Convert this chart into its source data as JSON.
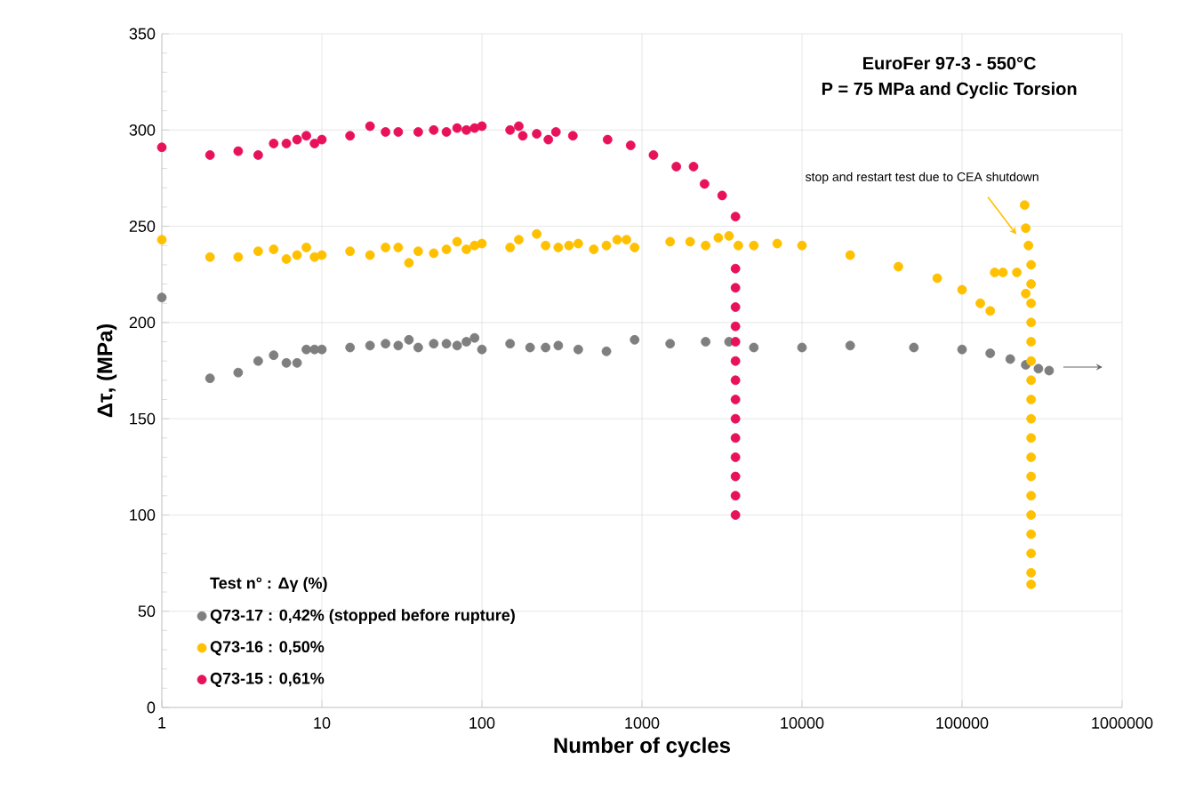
{
  "chart_data": {
    "type": "scatter",
    "title": "EuroFer 97-3 - 550°C",
    "subtitle": "P = 75 MPa and Cyclic Torsion",
    "xlabel": "Number of cycles",
    "ylabel": "Δτ, (MPa)",
    "legend_title": "Test n° : Δγ (%)",
    "log": "x",
    "grid": true,
    "legend": "bottom left",
    "marker": "circle",
    "xlim": [
      1,
      1000000
    ],
    "xticks": [
      1,
      10,
      100,
      1000,
      10000,
      100000,
      1000000
    ],
    "ylim": [
      0,
      350
    ],
    "yticks": [
      0,
      50,
      100,
      150,
      200,
      250,
      300,
      350
    ],
    "annotations": [
      {
        "text": "stop and restart test due to CEA shutdown",
        "x": 230000,
        "y": 243
      }
    ],
    "series": [
      {
        "name": "Q73-17 : 0,42% (stopped before rupture)",
        "color": "#7f7f7f",
        "x": [
          1,
          2,
          3,
          4,
          5,
          6,
          7,
          8,
          9,
          10,
          15,
          20,
          25,
          30,
          35,
          40,
          50,
          60,
          70,
          80,
          90,
          100,
          150,
          200,
          250,
          300,
          400,
          600,
          900,
          1500,
          2500,
          3500,
          5000,
          10000,
          20000,
          50000,
          100000,
          150000,
          200000,
          250000,
          300000,
          350000
        ],
        "values": [
          213,
          171,
          174,
          180,
          183,
          179,
          179,
          186,
          186,
          186,
          187,
          188,
          189,
          188,
          191,
          187,
          189,
          189,
          188,
          190,
          192,
          186,
          189,
          187,
          187,
          188,
          186,
          185,
          191,
          189,
          190,
          190,
          187,
          187,
          188,
          187,
          186,
          184,
          181,
          178,
          176,
          175
        ]
      },
      {
        "name": "Q73-16 : 0,50%",
        "color": "#ffc000",
        "x": [
          1,
          2,
          3,
          4,
          5,
          6,
          7,
          8,
          9,
          10,
          15,
          20,
          25,
          30,
          35,
          40,
          50,
          60,
          70,
          80,
          90,
          100,
          150,
          170,
          220,
          250,
          300,
          350,
          400,
          500,
          600,
          700,
          800,
          900,
          1500,
          2000,
          2500,
          3000,
          3500,
          4000,
          5000,
          7000,
          10000,
          20000,
          40000,
          70000,
          100000,
          130000,
          150000,
          160000,
          180000,
          220000,
          250000,
          246000,
          250000,
          260000,
          270000,
          270000,
          270000,
          270000,
          270000,
          270000,
          270000,
          270000,
          270000,
          270000,
          270000,
          270000,
          270000,
          270000,
          270000,
          270000,
          270000,
          270000
        ],
        "values": [
          243,
          234,
          234,
          237,
          238,
          233,
          235,
          239,
          234,
          235,
          237,
          235,
          239,
          239,
          231,
          237,
          236,
          238,
          242,
          238,
          240,
          241,
          239,
          243,
          246,
          240,
          239,
          240,
          241,
          238,
          240,
          243,
          243,
          239,
          242,
          242,
          240,
          244,
          245,
          240,
          240,
          241,
          240,
          235,
          229,
          223,
          217,
          210,
          206,
          226,
          226,
          226,
          215,
          261,
          249,
          240,
          230,
          220,
          210,
          200,
          190,
          180,
          170,
          160,
          150,
          140,
          130,
          120,
          110,
          100,
          90,
          80,
          70,
          64
        ]
      },
      {
        "name": "Q73-15 : 0,61%",
        "color": "#e8115b",
        "x": [
          1,
          2,
          3,
          4,
          5,
          6,
          7,
          8,
          9,
          10,
          15,
          20,
          25,
          30,
          40,
          50,
          60,
          70,
          80,
          90,
          100,
          150,
          170,
          180,
          220,
          260,
          290,
          370,
          610,
          850,
          1180,
          1640,
          2100,
          2460,
          3170,
          3840,
          3840,
          3840,
          3840,
          3840,
          3840,
          3840,
          3840,
          3840,
          3840,
          3840,
          3840,
          3840,
          3840,
          3840
        ],
        "values": [
          291,
          287,
          289,
          287,
          293,
          293,
          295,
          297,
          293,
          295,
          297,
          302,
          299,
          299,
          299,
          300,
          299,
          301,
          300,
          301,
          302,
          300,
          302,
          297,
          298,
          295,
          299,
          297,
          295,
          292,
          287,
          281,
          281,
          272,
          266,
          255,
          228,
          218,
          208,
          198,
          190,
          180,
          170,
          160,
          150,
          140,
          130,
          120,
          110,
          100
        ]
      }
    ]
  }
}
